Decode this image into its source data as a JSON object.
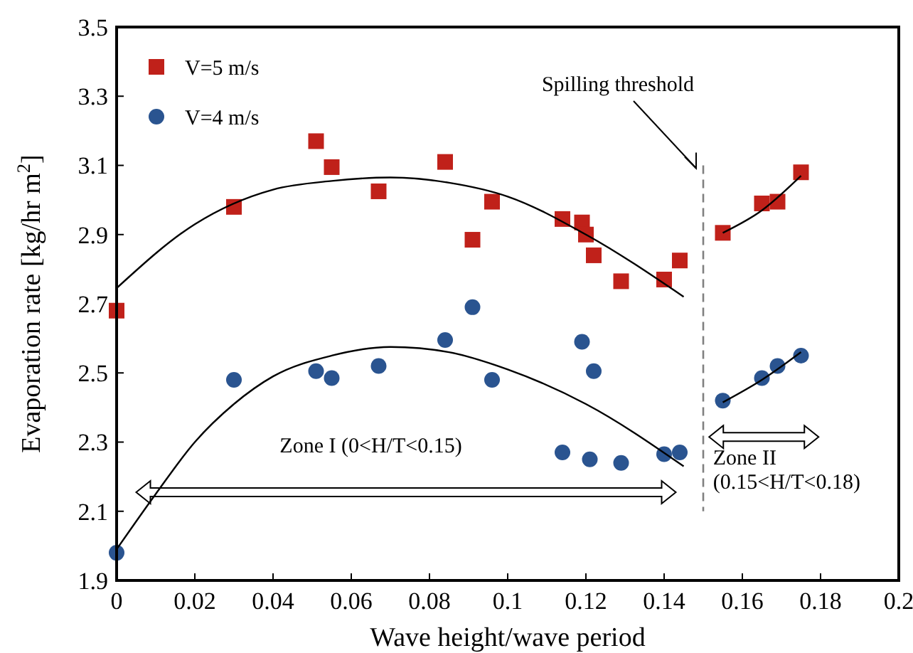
{
  "chart_data": {
    "type": "scatter",
    "xlabel": "Wave height/wave period",
    "ylabel": "Evaporation rate [kg/hr m$^{2}$]",
    "xlim": [
      0,
      0.2
    ],
    "xticks": [
      0,
      0.02,
      0.04,
      0.06,
      0.08,
      {
        "value": 0.1,
        "label": "0.1"
      },
      0.12,
      0.14,
      0.16,
      0.18,
      {
        "value": 0.2,
        "label": "0.2"
      }
    ],
    "ylim": [
      1.9,
      3.5
    ],
    "yticks": [
      1.9,
      2.1,
      2.3,
      2.5,
      2.7,
      2.9,
      3.1,
      3.3,
      3.5
    ],
    "grid": false,
    "legend": "top left",
    "series": [
      {
        "name": "V=5 m/s",
        "color": "#c0211a",
        "marker": "square",
        "x": [
          0,
          0.03,
          0.051,
          0.055,
          0.067,
          0.084,
          0.091,
          0.096,
          0.114,
          0.119,
          0.12,
          0.122,
          0.129,
          0.14,
          0.144,
          0.155,
          0.165,
          0.169,
          0.175
        ],
        "values": [
          2.68,
          2.98,
          3.17,
          3.095,
          3.025,
          3.11,
          2.885,
          2.995,
          2.945,
          2.935,
          2.9,
          2.84,
          2.765,
          2.77,
          2.825,
          2.905,
          2.99,
          2.995,
          3.08
        ]
      },
      {
        "name": "V=4 m/s",
        "color": "#2a5490",
        "marker": "circle",
        "x": [
          0,
          0.03,
          0.051,
          0.055,
          0.067,
          0.084,
          0.091,
          0.096,
          0.114,
          0.119,
          0.121,
          0.122,
          0.129,
          0.14,
          0.144,
          0.155,
          0.165,
          0.169,
          0.175
        ],
        "values": [
          1.98,
          2.48,
          2.505,
          2.485,
          2.52,
          2.595,
          2.69,
          2.48,
          2.27,
          2.59,
          2.25,
          2.505,
          2.24,
          2.265,
          2.27,
          2.42,
          2.485,
          2.52,
          2.55
        ]
      },
      {
        "type": "line",
        "color": "#000000",
        "marker": "none",
        "x": [
          0,
          0.02,
          0.04,
          0.055,
          0.07,
          0.085,
          0.1,
          0.12,
          0.145
        ],
        "values": [
          2.745,
          2.93,
          3.03,
          3.055,
          3.065,
          3.05,
          3.01,
          2.9,
          2.72
        ]
      },
      {
        "type": "line",
        "color": "#000000",
        "marker": "none",
        "x": [
          0.155,
          0.165,
          0.175
        ],
        "values": [
          2.905,
          2.97,
          3.07
        ]
      },
      {
        "type": "line",
        "color": "#000000",
        "marker": "none",
        "x": [
          0,
          0.01,
          0.02,
          0.03,
          0.04,
          0.055,
          0.07,
          0.085,
          0.1,
          0.12,
          0.145
        ],
        "values": [
          1.99,
          2.15,
          2.3,
          2.41,
          2.49,
          2.55,
          2.575,
          2.56,
          2.51,
          2.41,
          2.23
        ]
      },
      {
        "type": "line",
        "color": "#000000",
        "marker": "none",
        "x": [
          0.155,
          0.165,
          0.175
        ],
        "values": [
          2.415,
          2.48,
          2.56
        ]
      }
    ],
    "ref_lines": [
      {
        "axis": "x",
        "value": 0.15,
        "label": "Spilling threshold",
        "color": "#808080",
        "line_style": "dashed"
      }
    ],
    "annotations": [
      "Zone I (0<H/T<0.15)",
      "Zone II",
      "(0.15<H/T<0.18)"
    ]
  }
}
